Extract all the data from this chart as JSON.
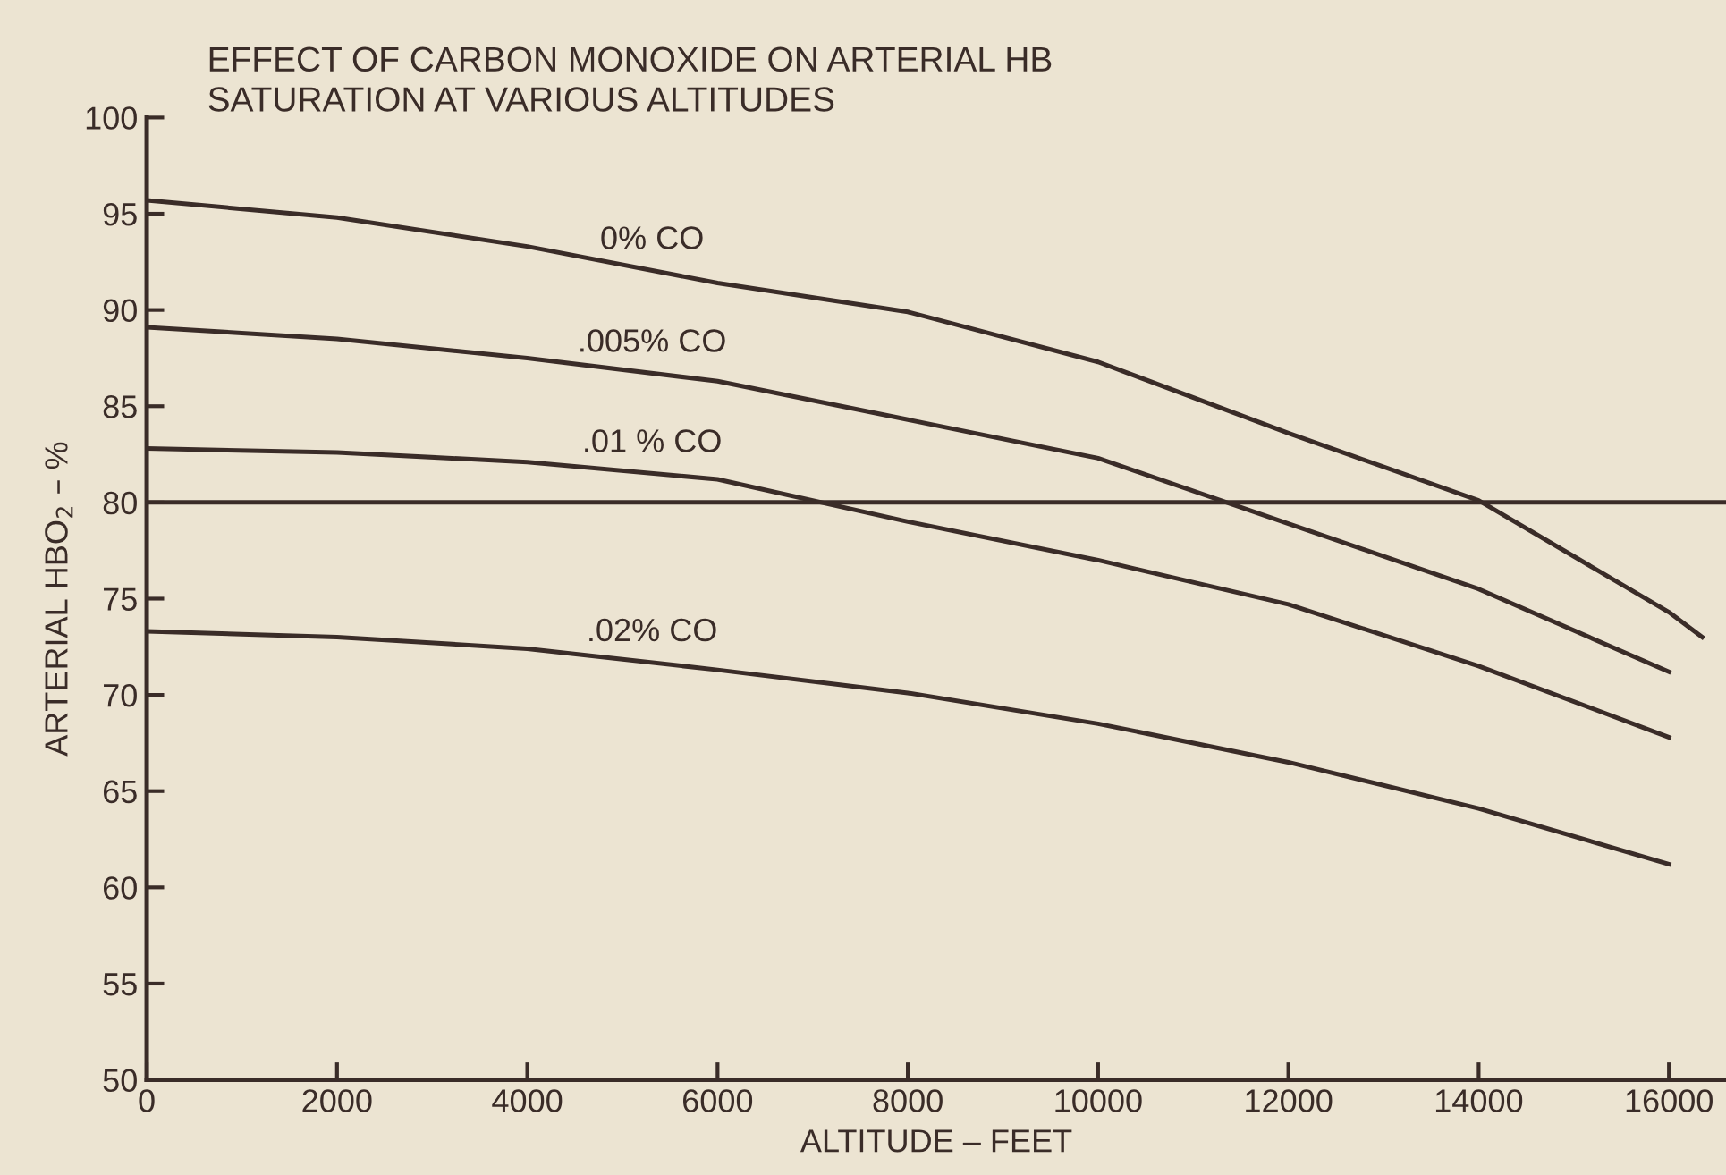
{
  "chart_data": {
    "type": "line",
    "title": "EFFECT OF CARBON MONOXIDE ON ARTERIAL HB\nSATURATION AT VARIOUS ALTITUDES",
    "xlabel": "ALTITUDE – FEET",
    "ylabel": "ARTERIAL HBO$_{2}$ – %",
    "x": [
      0,
      2000,
      4000,
      6000,
      8000,
      10000,
      12000,
      14000,
      16000
    ],
    "series": [
      {
        "name": "0% CO",
        "color": "#3a2c28",
        "x": [
          0,
          2000,
          4000,
          6000,
          8000,
          10000,
          12000,
          14000,
          16000,
          16350
        ],
        "values": [
          95.7,
          94.8,
          93.3,
          91.4,
          89.9,
          87.3,
          83.6,
          80.1,
          74.3,
          73.0
        ]
      },
      {
        "name": ".005% CO",
        "color": "#3a2c28",
        "values": [
          89.1,
          88.5,
          87.5,
          86.3,
          84.3,
          82.3,
          78.9,
          75.5,
          71.2
        ]
      },
      {
        "name": ".01 % CO",
        "color": "#3a2c28",
        "values": [
          82.8,
          82.6,
          82.1,
          81.2,
          79.0,
          77.0,
          74.7,
          71.5,
          67.8
        ]
      },
      {
        "name": ".02% CO",
        "color": "#3a2c28",
        "values": [
          73.3,
          73.0,
          72.4,
          71.3,
          70.1,
          68.5,
          66.5,
          64.1,
          61.2
        ]
      }
    ],
    "ref_lines": [
      {
        "axis": "y",
        "value": 80,
        "color": "#3a2c28"
      }
    ],
    "xlim": [
      0,
      16600
    ],
    "ylim": [
      50,
      100
    ],
    "xticks": [
      0,
      2000,
      4000,
      6000,
      8000,
      10000,
      12000,
      14000,
      16000
    ],
    "yticks": [
      50,
      55,
      60,
      65,
      70,
      75,
      80,
      85,
      90,
      95,
      100
    ],
    "grid": false,
    "legend": false,
    "marker": "none",
    "line_style": "solid"
  }
}
